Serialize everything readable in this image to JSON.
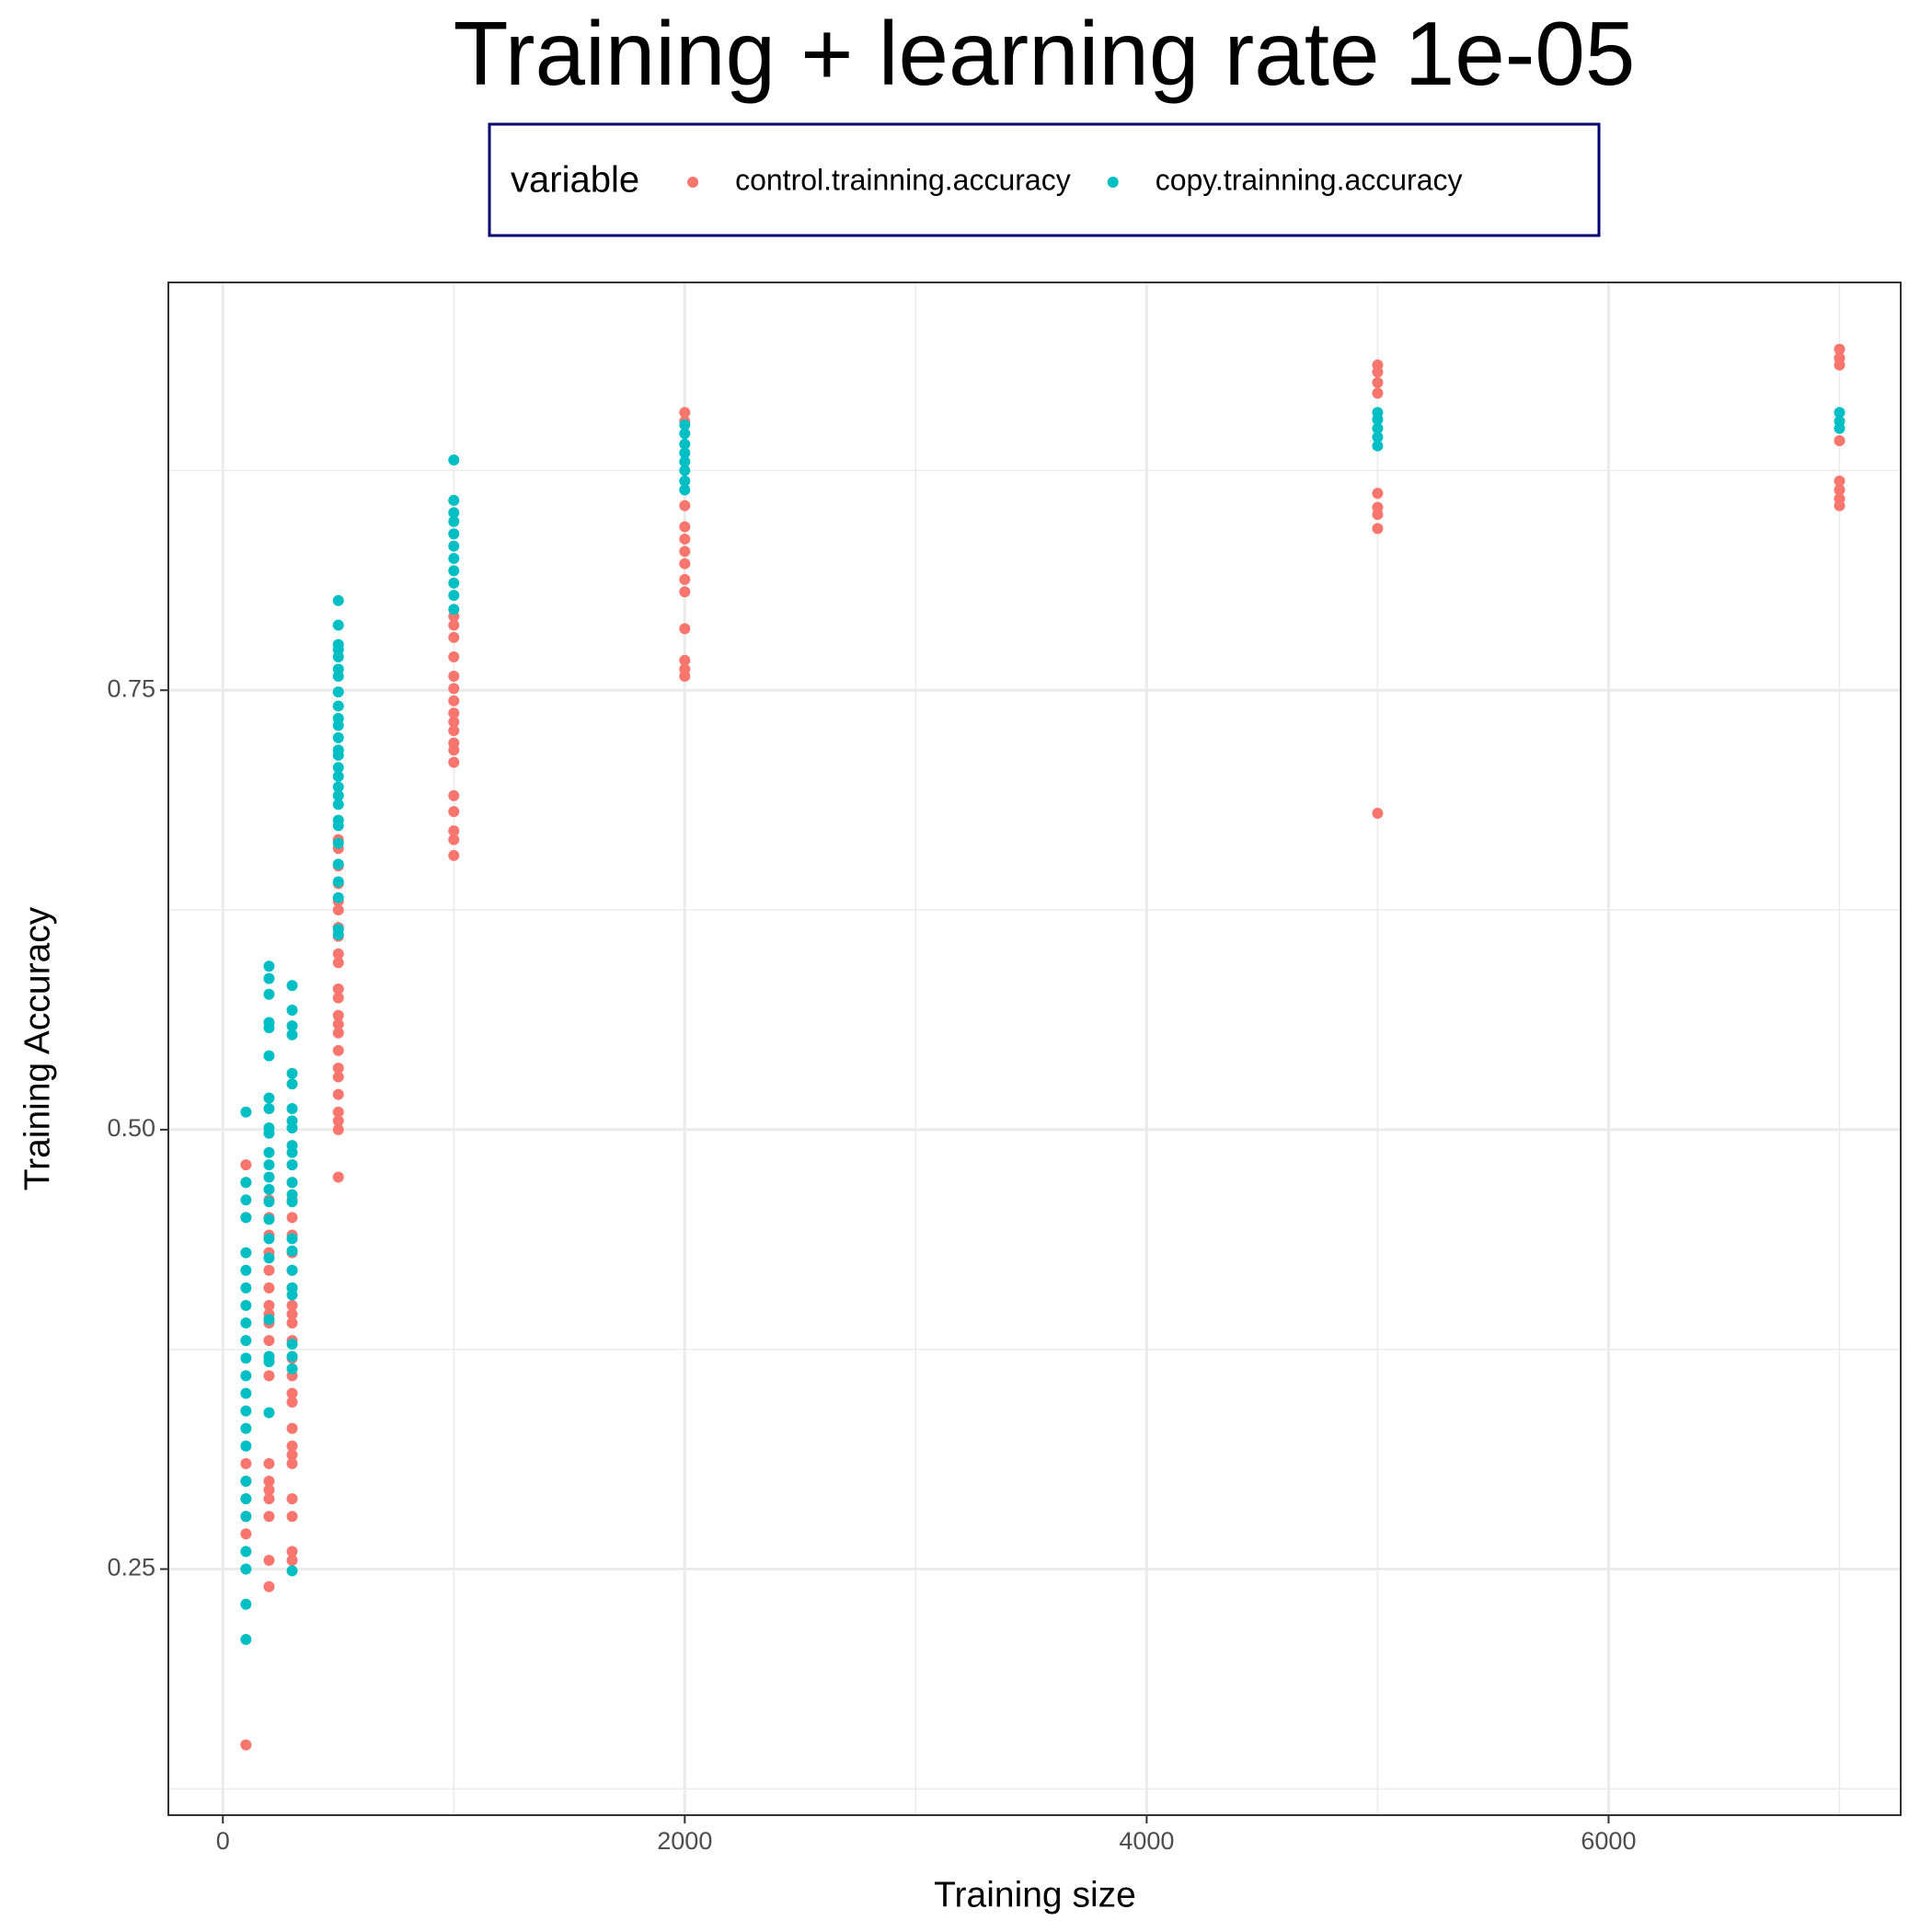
{
  "chart_data": {
    "type": "scatter",
    "title": "Training + learning rate 1e-05",
    "x_label": "Training size",
    "y_label": "Training Accuracy",
    "legend_title": "variable",
    "legend_position": "top",
    "grid": true,
    "xlim": [
      -236,
      7265
    ],
    "ylim": [
      0.11,
      0.982
    ],
    "xticks": [
      0,
      2000,
      4000,
      6000
    ],
    "yticks": [
      0.25,
      {
        "value": 0.5,
        "label": "0.50"
      },
      0.75
    ],
    "x_minor_gridlines": [
      1000,
      3000,
      5000,
      7000
    ],
    "y_minor_gridlines": [
      0.125,
      0.375,
      0.625,
      0.875
    ],
    "series": [
      {
        "name": "control.trainning.accuracy",
        "color": "#F8766D",
        "x": [
          100,
          100,
          100,
          100,
          100,
          100,
          100,
          100,
          100,
          200,
          200,
          200,
          200,
          200,
          200,
          200,
          200,
          200,
          200,
          200,
          200,
          200,
          200,
          200,
          200,
          200,
          200,
          200,
          300,
          300,
          300,
          300,
          300,
          300,
          300,
          300,
          300,
          300,
          300,
          300,
          300,
          300,
          300,
          300,
          300,
          300,
          300,
          300,
          300,
          300,
          300,
          300,
          500,
          500,
          500,
          500,
          500,
          500,
          500,
          500,
          500,
          500,
          500,
          500,
          500,
          500,
          500,
          500,
          500,
          500,
          500,
          500,
          500,
          500,
          500,
          1000,
          1000,
          1000,
          1000,
          1000,
          1000,
          1000,
          1000,
          1000,
          1000,
          1000,
          1000,
          1000,
          1000,
          1000,
          1000,
          1000,
          1000,
          2000,
          2000,
          2000,
          2000,
          2000,
          2000,
          2000,
          2000,
          2000,
          2000,
          2000,
          2000,
          2000,
          5000,
          5000,
          5000,
          5000,
          5000,
          5000,
          5000,
          5000,
          5000,
          7000,
          7000,
          7000,
          7000,
          7000,
          7000,
          7000,
          7000
        ],
        "values": [
          0.48,
          0.47,
          0.45,
          0.31,
          0.3,
          0.29,
          0.28,
          0.27,
          0.15,
          0.46,
          0.45,
          0.44,
          0.43,
          0.42,
          0.41,
          0.4,
          0.395,
          0.39,
          0.38,
          0.37,
          0.36,
          0.31,
          0.3,
          0.295,
          0.29,
          0.28,
          0.255,
          0.24,
          0.48,
          0.47,
          0.46,
          0.45,
          0.44,
          0.43,
          0.42,
          0.41,
          0.4,
          0.395,
          0.39,
          0.38,
          0.37,
          0.36,
          0.35,
          0.345,
          0.33,
          0.32,
          0.315,
          0.31,
          0.29,
          0.28,
          0.26,
          0.255,
          0.473,
          0.5,
          0.505,
          0.51,
          0.52,
          0.53,
          0.535,
          0.545,
          0.555,
          0.56,
          0.565,
          0.575,
          0.58,
          0.595,
          0.6,
          0.61,
          0.615,
          0.625,
          0.63,
          0.64,
          0.65,
          0.66,
          0.665,
          0.792,
          0.787,
          0.78,
          0.769,
          0.758,
          0.751,
          0.744,
          0.737,
          0.732,
          0.727,
          0.72,
          0.716,
          0.709,
          0.69,
          0.681,
          0.67,
          0.665,
          0.656,
          0.908,
          0.903,
          0.855,
          0.843,
          0.836,
          0.829,
          0.822,
          0.813,
          0.806,
          0.785,
          0.767,
          0.762,
          0.758,
          0.935,
          0.931,
          0.925,
          0.919,
          0.862,
          0.854,
          0.85,
          0.842,
          0.68,
          0.944,
          0.939,
          0.935,
          0.892,
          0.869,
          0.864,
          0.859,
          0.855
        ]
      },
      {
        "name": "copy.trainning.accuracy",
        "color": "#00BFC4",
        "x": [
          100,
          100,
          100,
          100,
          100,
          100,
          100,
          100,
          100,
          100,
          100,
          100,
          100,
          100,
          100,
          100,
          100,
          100,
          100,
          100,
          100,
          100,
          100,
          200,
          200,
          200,
          200,
          200,
          200,
          200,
          200,
          200,
          200,
          200,
          200,
          200,
          200,
          200,
          200,
          200,
          200,
          200,
          200,
          200,
          200,
          300,
          300,
          300,
          300,
          300,
          300,
          300,
          300,
          300,
          300,
          300,
          300,
          300,
          300,
          300,
          300,
          300,
          300,
          300,
          300,
          300,
          300,
          300,
          300,
          500,
          500,
          500,
          500,
          500,
          500,
          500,
          500,
          500,
          500,
          500,
          500,
          500,
          500,
          500,
          500,
          500,
          500,
          500,
          500,
          500,
          500,
          500,
          500,
          500,
          500,
          500,
          1000,
          1000,
          1000,
          1000,
          1000,
          1000,
          1000,
          1000,
          1000,
          1000,
          1000,
          2000,
          2000,
          2000,
          2000,
          2000,
          2000,
          2000,
          2000,
          5000,
          5000,
          5000,
          5000,
          5000,
          7000,
          7000,
          7000
        ],
        "values": [
          0.51,
          0.47,
          0.46,
          0.45,
          0.43,
          0.42,
          0.41,
          0.4,
          0.39,
          0.38,
          0.37,
          0.36,
          0.35,
          0.34,
          0.33,
          0.32,
          0.3,
          0.29,
          0.28,
          0.26,
          0.25,
          0.23,
          0.21,
          0.593,
          0.586,
          0.577,
          0.561,
          0.558,
          0.542,
          0.518,
          0.512,
          0.501,
          0.498,
          0.487,
          0.48,
          0.473,
          0.466,
          0.459,
          0.449,
          0.438,
          0.427,
          0.392,
          0.371,
          0.368,
          0.339,
          0.582,
          0.568,
          0.559,
          0.554,
          0.532,
          0.526,
          0.512,
          0.505,
          0.501,
          0.491,
          0.487,
          0.48,
          0.47,
          0.463,
          0.459,
          0.438,
          0.431,
          0.42,
          0.41,
          0.406,
          0.378,
          0.371,
          0.364,
          0.249,
          0.801,
          0.787,
          0.776,
          0.773,
          0.769,
          0.762,
          0.758,
          0.749,
          0.741,
          0.734,
          0.73,
          0.723,
          0.716,
          0.713,
          0.706,
          0.701,
          0.695,
          0.69,
          0.685,
          0.676,
          0.673,
          0.663,
          0.651,
          0.641,
          0.632,
          0.614,
          0.611,
          0.881,
          0.858,
          0.851,
          0.846,
          0.839,
          0.832,
          0.825,
          0.818,
          0.811,
          0.804,
          0.796,
          0.901,
          0.896,
          0.89,
          0.885,
          0.88,
          0.875,
          0.869,
          0.864,
          0.908,
          0.904,
          0.899,
          0.894,
          0.889,
          0.908,
          0.903,
          0.899
        ]
      }
    ]
  }
}
